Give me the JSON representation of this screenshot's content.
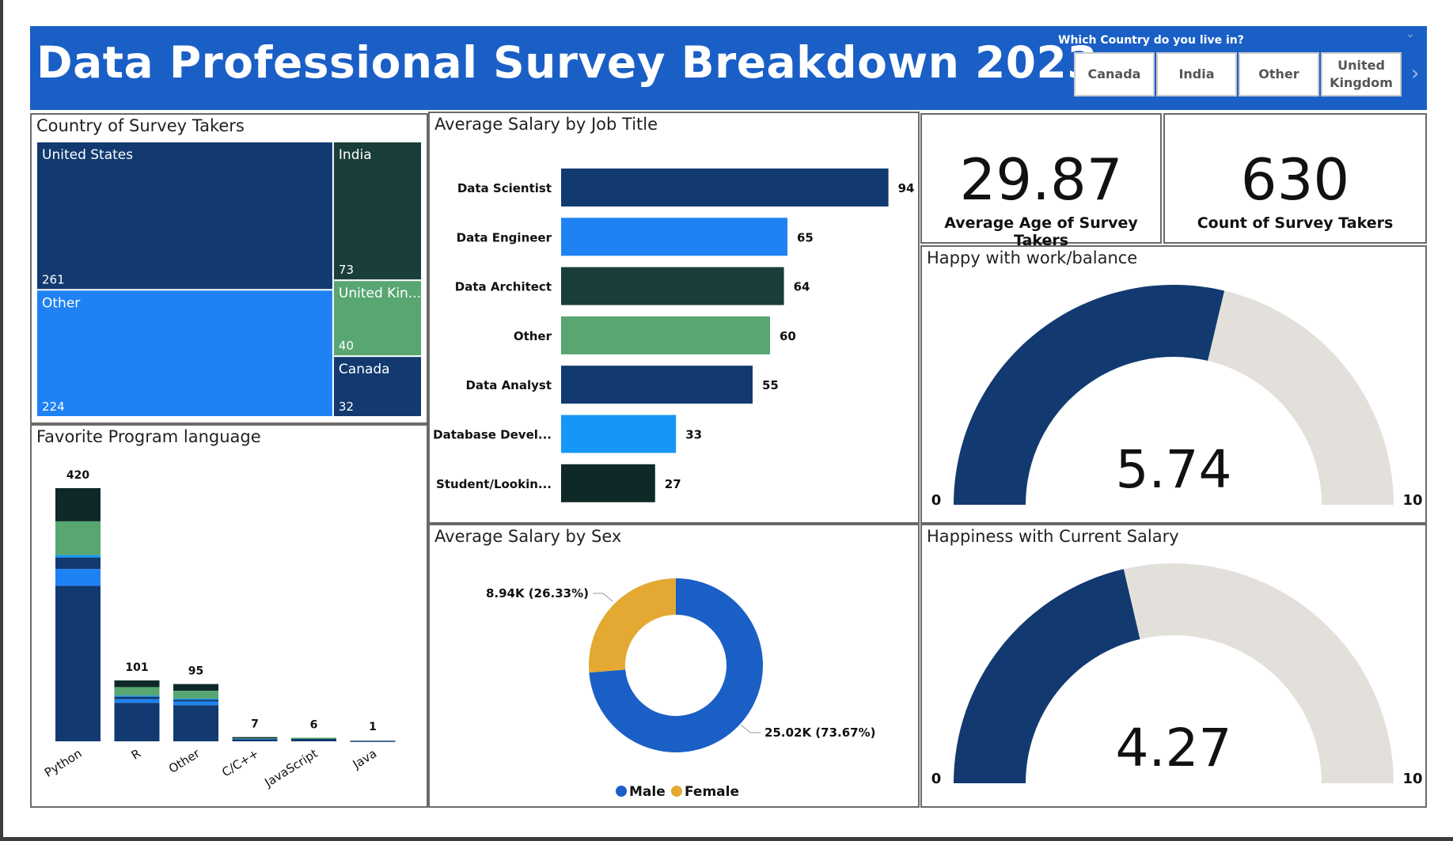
{
  "header": {
    "title": "Data Professional Survey Breakdown 2023",
    "slicer_label": "Which Country do you live in?",
    "slicer_options": [
      "Canada",
      "India",
      "Other",
      "United Kingdom"
    ]
  },
  "colors": {
    "header_bg": "#1a5fc6",
    "navy": "#123a70",
    "blue": "#1f82f4",
    "dark_green": "#1a3e3a",
    "green": "#58a672",
    "light_blue": "#1597f7",
    "near_black": "#0f2828",
    "gauge_fill": "#123a70",
    "gauge_track": "#e3e0db",
    "male": "#1a5fc6",
    "female": "#e3a933"
  },
  "kpi": {
    "avg_age_value": "29.87",
    "avg_age_label": "Average Age of Survey Takers",
    "count_value": "630",
    "count_label": "Count of Survey Takers"
  },
  "chart_data": [
    {
      "type": "treemap",
      "title": "Country of Survey Takers",
      "items": [
        {
          "label": "United States",
          "value": 261,
          "value_label": "261"
        },
        {
          "label": "Other",
          "value": 224,
          "value_label": "224"
        },
        {
          "label": "India",
          "value": 73,
          "value_label": "73"
        },
        {
          "label": "United Kin...",
          "value": 40,
          "value_label": "40"
        },
        {
          "label": "Canada",
          "value": 32,
          "value_label": "32"
        }
      ]
    },
    {
      "type": "bar",
      "orientation": "horizontal",
      "title": "Average Salary by Job Title",
      "categories": [
        "Data Scientist",
        "Data Engineer",
        "Data Architect",
        "Other",
        "Data Analyst",
        "Database Devel...",
        "Student/Lookin..."
      ],
      "values": [
        94,
        65,
        64,
        60,
        55,
        33,
        27
      ],
      "value_labels": [
        "94",
        "65",
        "64",
        "60",
        "55",
        "33",
        "27"
      ],
      "xlim": [
        0,
        100
      ]
    },
    {
      "type": "bar",
      "stacked": true,
      "title": "Favorite Program language",
      "categories": [
        "Python",
        "R",
        "Other",
        "C/C++",
        "JavaScript",
        "Java"
      ],
      "totals": [
        420,
        101,
        95,
        7,
        6,
        1
      ],
      "total_labels": [
        "420",
        "101",
        "95",
        "7",
        "6",
        "1"
      ],
      "series": [
        {
          "values": [
            258,
            64,
            60,
            4,
            4,
            1
          ]
        },
        {
          "values": [
            28,
            6,
            6,
            1,
            0,
            0
          ]
        },
        {
          "values": [
            19,
            4,
            3,
            0,
            1,
            0
          ]
        },
        {
          "values": [
            4,
            2,
            2,
            0,
            0,
            0
          ]
        },
        {
          "values": [
            56,
            14,
            13,
            1,
            1,
            0
          ]
        },
        {
          "values": [
            55,
            11,
            11,
            1,
            0,
            0
          ]
        }
      ],
      "ylim": [
        0,
        420
      ]
    },
    {
      "type": "pie",
      "donut": true,
      "title": "Average Salary by Sex",
      "slices": [
        {
          "name": "Male",
          "value": 25.02,
          "label": "25.02K (73.67%)"
        },
        {
          "name": "Female",
          "value": 8.94,
          "label": "8.94K (26.33%)"
        }
      ],
      "legend": [
        "Male",
        "Female"
      ],
      "legend_position": "bottom"
    },
    {
      "type": "gauge",
      "title": "Happy with work/balance",
      "value": 5.74,
      "value_label": "5.74",
      "min": 0,
      "max": 10,
      "min_label": "0",
      "max_label": "10"
    },
    {
      "type": "gauge",
      "title": "Happiness with Current Salary",
      "value": 4.27,
      "value_label": "4.27",
      "min": 0,
      "max": 10,
      "min_label": "0",
      "max_label": "10"
    }
  ]
}
